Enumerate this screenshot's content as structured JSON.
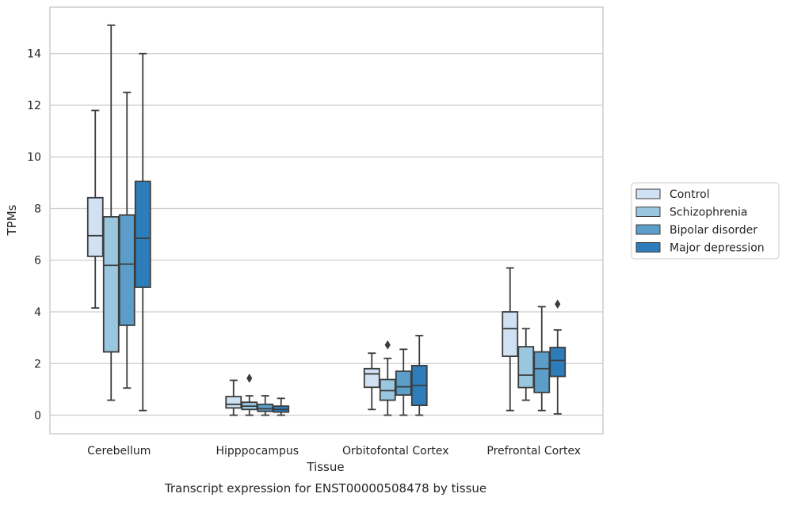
{
  "chart_data": {
    "type": "box",
    "title": "",
    "caption": "Transcript expression for ENST00000508478 by tissue",
    "xlabel": "Tissue",
    "ylabel": "TPMs",
    "ylim": [
      -0.72,
      15.8
    ],
    "yticks": [
      0,
      2,
      4,
      6,
      8,
      10,
      12,
      14
    ],
    "grid": "horizontal",
    "legend_position": "right",
    "categories": [
      "Cerebellum",
      "Hipppocampus",
      "Orbitofontal Cortex",
      "Prefrontal Cortex"
    ],
    "series": [
      {
        "name": "Control",
        "color": "#cfe1f2",
        "boxes": [
          {
            "whisker_low": 4.15,
            "q1": 6.15,
            "median": 6.95,
            "q3": 8.42,
            "whisker_high": 11.8,
            "outliers": []
          },
          {
            "whisker_low": 0.0,
            "q1": 0.28,
            "median": 0.42,
            "q3": 0.72,
            "whisker_high": 1.35,
            "outliers": []
          },
          {
            "whisker_low": 0.22,
            "q1": 1.08,
            "median": 1.6,
            "q3": 1.8,
            "whisker_high": 2.4,
            "outliers": []
          },
          {
            "whisker_low": 0.18,
            "q1": 2.28,
            "median": 3.35,
            "q3": 4.0,
            "whisker_high": 5.7,
            "outliers": []
          }
        ]
      },
      {
        "name": "Schizophrenia",
        "color": "#9ac7e0",
        "boxes": [
          {
            "whisker_low": 0.58,
            "q1": 2.45,
            "median": 5.8,
            "q3": 7.68,
            "whisker_high": 15.1,
            "outliers": []
          },
          {
            "whisker_low": 0.0,
            "q1": 0.22,
            "median": 0.35,
            "q3": 0.5,
            "whisker_high": 0.75,
            "outliers": [
              1.43
            ]
          },
          {
            "whisker_low": 0.0,
            "q1": 0.58,
            "median": 0.95,
            "q3": 1.38,
            "whisker_high": 2.2,
            "outliers": [
              2.72
            ]
          },
          {
            "whisker_low": 0.58,
            "q1": 1.07,
            "median": 1.55,
            "q3": 2.65,
            "whisker_high": 3.35,
            "outliers": []
          }
        ]
      },
      {
        "name": "Bipolar disorder",
        "color": "#5b9ec9",
        "boxes": [
          {
            "whisker_low": 1.05,
            "q1": 3.48,
            "median": 5.85,
            "q3": 7.75,
            "whisker_high": 12.5,
            "outliers": []
          },
          {
            "whisker_low": 0.0,
            "q1": 0.15,
            "median": 0.25,
            "q3": 0.42,
            "whisker_high": 0.75,
            "outliers": []
          },
          {
            "whisker_low": 0.0,
            "q1": 0.78,
            "median": 1.1,
            "q3": 1.7,
            "whisker_high": 2.55,
            "outliers": []
          },
          {
            "whisker_low": 0.18,
            "q1": 0.88,
            "median": 1.8,
            "q3": 2.45,
            "whisker_high": 4.2,
            "outliers": []
          }
        ]
      },
      {
        "name": "Major depression",
        "color": "#2d7dbb",
        "boxes": [
          {
            "whisker_low": 0.18,
            "q1": 4.95,
            "median": 6.85,
            "q3": 9.05,
            "whisker_high": 14.0,
            "outliers": []
          },
          {
            "whisker_low": 0.0,
            "q1": 0.12,
            "median": 0.22,
            "q3": 0.35,
            "whisker_high": 0.65,
            "outliers": []
          },
          {
            "whisker_low": 0.0,
            "q1": 0.38,
            "median": 1.15,
            "q3": 1.92,
            "whisker_high": 3.08,
            "outliers": []
          },
          {
            "whisker_low": 0.05,
            "q1": 1.5,
            "median": 2.12,
            "q3": 2.62,
            "whisker_high": 3.3,
            "outliers": [
              4.3
            ]
          }
        ]
      }
    ]
  }
}
